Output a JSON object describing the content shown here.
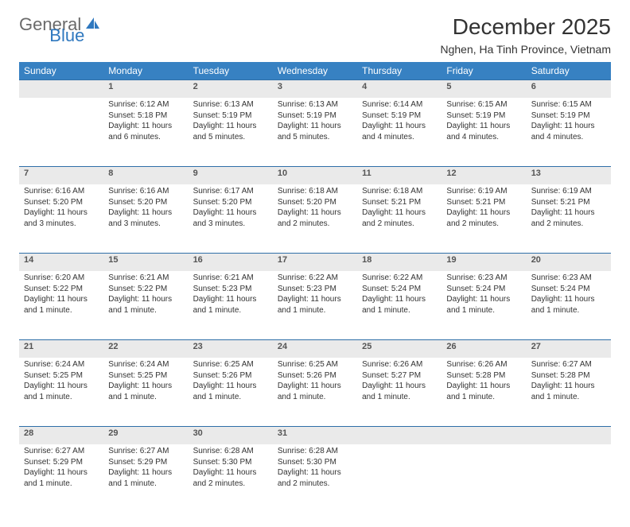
{
  "logo": {
    "text1": "General",
    "text2": "Blue"
  },
  "title": "December 2025",
  "location": "Nghen, Ha Tinh Province, Vietnam",
  "columns": [
    "Sunday",
    "Monday",
    "Tuesday",
    "Wednesday",
    "Thursday",
    "Friday",
    "Saturday"
  ],
  "colors": {
    "header_bg": "#3781c2",
    "header_text": "#ffffff",
    "daynum_bg": "#eaeaea",
    "rule": "#2f6fa8",
    "body_text": "#333333"
  },
  "weeks": [
    [
      {
        "day": "",
        "sunrise": "",
        "sunset": "",
        "daylight": ""
      },
      {
        "day": "1",
        "sunrise": "Sunrise: 6:12 AM",
        "sunset": "Sunset: 5:18 PM",
        "daylight": "Daylight: 11 hours and 6 minutes."
      },
      {
        "day": "2",
        "sunrise": "Sunrise: 6:13 AM",
        "sunset": "Sunset: 5:19 PM",
        "daylight": "Daylight: 11 hours and 5 minutes."
      },
      {
        "day": "3",
        "sunrise": "Sunrise: 6:13 AM",
        "sunset": "Sunset: 5:19 PM",
        "daylight": "Daylight: 11 hours and 5 minutes."
      },
      {
        "day": "4",
        "sunrise": "Sunrise: 6:14 AM",
        "sunset": "Sunset: 5:19 PM",
        "daylight": "Daylight: 11 hours and 4 minutes."
      },
      {
        "day": "5",
        "sunrise": "Sunrise: 6:15 AM",
        "sunset": "Sunset: 5:19 PM",
        "daylight": "Daylight: 11 hours and 4 minutes."
      },
      {
        "day": "6",
        "sunrise": "Sunrise: 6:15 AM",
        "sunset": "Sunset: 5:19 PM",
        "daylight": "Daylight: 11 hours and 4 minutes."
      }
    ],
    [
      {
        "day": "7",
        "sunrise": "Sunrise: 6:16 AM",
        "sunset": "Sunset: 5:20 PM",
        "daylight": "Daylight: 11 hours and 3 minutes."
      },
      {
        "day": "8",
        "sunrise": "Sunrise: 6:16 AM",
        "sunset": "Sunset: 5:20 PM",
        "daylight": "Daylight: 11 hours and 3 minutes."
      },
      {
        "day": "9",
        "sunrise": "Sunrise: 6:17 AM",
        "sunset": "Sunset: 5:20 PM",
        "daylight": "Daylight: 11 hours and 3 minutes."
      },
      {
        "day": "10",
        "sunrise": "Sunrise: 6:18 AM",
        "sunset": "Sunset: 5:20 PM",
        "daylight": "Daylight: 11 hours and 2 minutes."
      },
      {
        "day": "11",
        "sunrise": "Sunrise: 6:18 AM",
        "sunset": "Sunset: 5:21 PM",
        "daylight": "Daylight: 11 hours and 2 minutes."
      },
      {
        "day": "12",
        "sunrise": "Sunrise: 6:19 AM",
        "sunset": "Sunset: 5:21 PM",
        "daylight": "Daylight: 11 hours and 2 minutes."
      },
      {
        "day": "13",
        "sunrise": "Sunrise: 6:19 AM",
        "sunset": "Sunset: 5:21 PM",
        "daylight": "Daylight: 11 hours and 2 minutes."
      }
    ],
    [
      {
        "day": "14",
        "sunrise": "Sunrise: 6:20 AM",
        "sunset": "Sunset: 5:22 PM",
        "daylight": "Daylight: 11 hours and 1 minute."
      },
      {
        "day": "15",
        "sunrise": "Sunrise: 6:21 AM",
        "sunset": "Sunset: 5:22 PM",
        "daylight": "Daylight: 11 hours and 1 minute."
      },
      {
        "day": "16",
        "sunrise": "Sunrise: 6:21 AM",
        "sunset": "Sunset: 5:23 PM",
        "daylight": "Daylight: 11 hours and 1 minute."
      },
      {
        "day": "17",
        "sunrise": "Sunrise: 6:22 AM",
        "sunset": "Sunset: 5:23 PM",
        "daylight": "Daylight: 11 hours and 1 minute."
      },
      {
        "day": "18",
        "sunrise": "Sunrise: 6:22 AM",
        "sunset": "Sunset: 5:24 PM",
        "daylight": "Daylight: 11 hours and 1 minute."
      },
      {
        "day": "19",
        "sunrise": "Sunrise: 6:23 AM",
        "sunset": "Sunset: 5:24 PM",
        "daylight": "Daylight: 11 hours and 1 minute."
      },
      {
        "day": "20",
        "sunrise": "Sunrise: 6:23 AM",
        "sunset": "Sunset: 5:24 PM",
        "daylight": "Daylight: 11 hours and 1 minute."
      }
    ],
    [
      {
        "day": "21",
        "sunrise": "Sunrise: 6:24 AM",
        "sunset": "Sunset: 5:25 PM",
        "daylight": "Daylight: 11 hours and 1 minute."
      },
      {
        "day": "22",
        "sunrise": "Sunrise: 6:24 AM",
        "sunset": "Sunset: 5:25 PM",
        "daylight": "Daylight: 11 hours and 1 minute."
      },
      {
        "day": "23",
        "sunrise": "Sunrise: 6:25 AM",
        "sunset": "Sunset: 5:26 PM",
        "daylight": "Daylight: 11 hours and 1 minute."
      },
      {
        "day": "24",
        "sunrise": "Sunrise: 6:25 AM",
        "sunset": "Sunset: 5:26 PM",
        "daylight": "Daylight: 11 hours and 1 minute."
      },
      {
        "day": "25",
        "sunrise": "Sunrise: 6:26 AM",
        "sunset": "Sunset: 5:27 PM",
        "daylight": "Daylight: 11 hours and 1 minute."
      },
      {
        "day": "26",
        "sunrise": "Sunrise: 6:26 AM",
        "sunset": "Sunset: 5:28 PM",
        "daylight": "Daylight: 11 hours and 1 minute."
      },
      {
        "day": "27",
        "sunrise": "Sunrise: 6:27 AM",
        "sunset": "Sunset: 5:28 PM",
        "daylight": "Daylight: 11 hours and 1 minute."
      }
    ],
    [
      {
        "day": "28",
        "sunrise": "Sunrise: 6:27 AM",
        "sunset": "Sunset: 5:29 PM",
        "daylight": "Daylight: 11 hours and 1 minute."
      },
      {
        "day": "29",
        "sunrise": "Sunrise: 6:27 AM",
        "sunset": "Sunset: 5:29 PM",
        "daylight": "Daylight: 11 hours and 1 minute."
      },
      {
        "day": "30",
        "sunrise": "Sunrise: 6:28 AM",
        "sunset": "Sunset: 5:30 PM",
        "daylight": "Daylight: 11 hours and 2 minutes."
      },
      {
        "day": "31",
        "sunrise": "Sunrise: 6:28 AM",
        "sunset": "Sunset: 5:30 PM",
        "daylight": "Daylight: 11 hours and 2 minutes."
      },
      {
        "day": "",
        "sunrise": "",
        "sunset": "",
        "daylight": ""
      },
      {
        "day": "",
        "sunrise": "",
        "sunset": "",
        "daylight": ""
      },
      {
        "day": "",
        "sunrise": "",
        "sunset": "",
        "daylight": ""
      }
    ]
  ]
}
